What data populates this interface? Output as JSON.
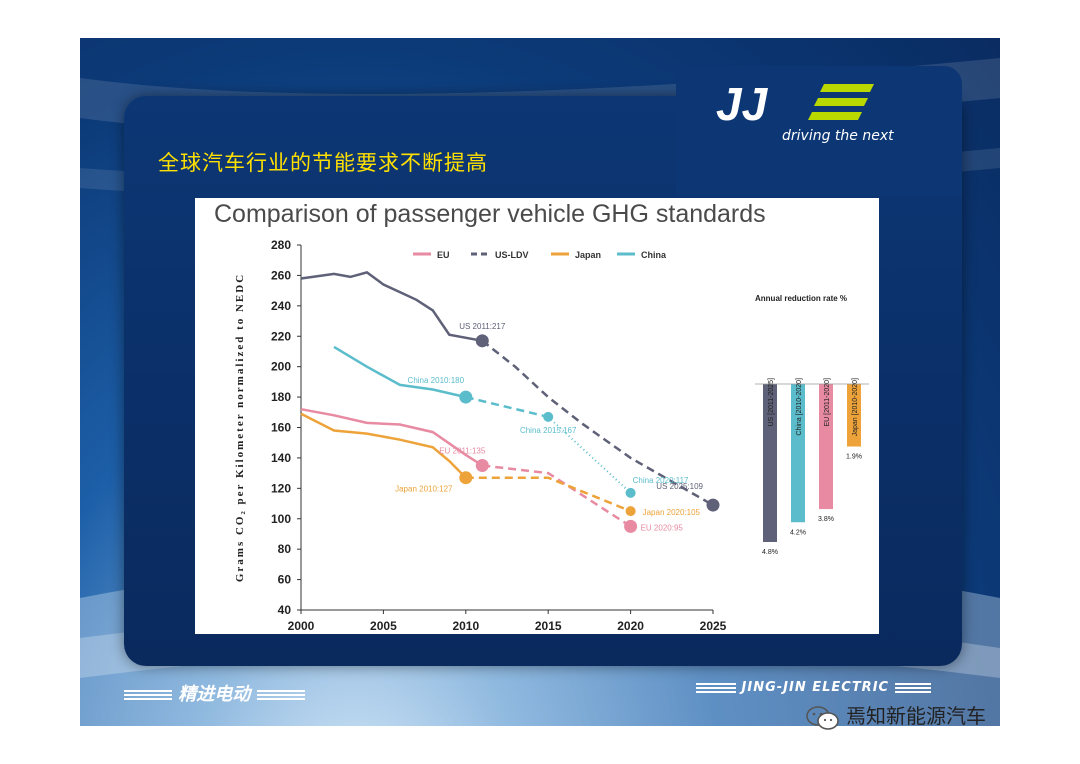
{
  "slide": {
    "title_cn": "全球汽车行业的节能要求不断提高",
    "logo_text": "JJ",
    "tagline": "driving the next",
    "footer_left": "精进电动",
    "footer_right": "JING-JIN ELECTRIC",
    "watermark": "焉知新能源汽车",
    "colors": {
      "panel": "#0b3270",
      "title": "#ffe000",
      "logo_accent": "#b9d800"
    }
  },
  "chart_data": [
    {
      "type": "line",
      "title": "Comparison of passenger vehicle GHG standards",
      "ylabel": "Grams CO₂ per Kilometer normalized to NEDC",
      "xlabel": "",
      "xlim": [
        2000,
        2025
      ],
      "ylim": [
        40,
        280
      ],
      "xticks": [
        2000,
        2005,
        2010,
        2015,
        2020,
        2025
      ],
      "yticks": [
        40,
        60,
        80,
        100,
        120,
        140,
        160,
        180,
        200,
        220,
        240,
        260,
        280
      ],
      "legend": "top",
      "series": [
        {
          "name": "EU",
          "color": "#e78aa2",
          "historical": [
            [
              2000,
              172
            ],
            [
              2002,
              168
            ],
            [
              2004,
              163
            ],
            [
              2006,
              162
            ],
            [
              2008,
              157
            ],
            [
              2010,
              142
            ],
            [
              2011,
              135
            ]
          ],
          "target": [
            [
              2011,
              135
            ],
            [
              2015,
              130
            ],
            [
              2020,
              95
            ]
          ]
        },
        {
          "name": "US-LDV",
          "color": "#5e6177",
          "historical": [
            [
              2000,
              258
            ],
            [
              2002,
              261
            ],
            [
              2003,
              259
            ],
            [
              2004,
              262
            ],
            [
              2005,
              254
            ],
            [
              2006,
              249
            ],
            [
              2007,
              244
            ],
            [
              2008,
              237
            ],
            [
              2009,
              221
            ],
            [
              2011,
              217
            ]
          ],
          "target": [
            [
              2011,
              217
            ],
            [
              2013,
              200
            ],
            [
              2015,
              180
            ],
            [
              2017,
              163
            ],
            [
              2020,
              140
            ],
            [
              2025,
              109
            ]
          ]
        },
        {
          "name": "Japan",
          "color": "#eda33a",
          "historical": [
            [
              2000,
              169
            ],
            [
              2002,
              158
            ],
            [
              2004,
              156
            ],
            [
              2006,
              152
            ],
            [
              2008,
              147
            ],
            [
              2009,
              138
            ],
            [
              2010,
              127
            ]
          ],
          "target": [
            [
              2010,
              127
            ],
            [
              2015,
              127
            ],
            [
              2020,
              105
            ]
          ]
        },
        {
          "name": "China",
          "color": "#5bbdcc",
          "historical": [
            [
              2002,
              213
            ],
            [
              2004,
              200
            ],
            [
              2006,
              188
            ],
            [
              2008,
              185
            ],
            [
              2010,
              180
            ]
          ],
          "target": [
            [
              2010,
              180
            ],
            [
              2015,
              167
            ]
          ],
          "projection": [
            [
              2015,
              167
            ],
            [
              2020,
              117
            ]
          ]
        }
      ],
      "markers": [
        {
          "series": "US-LDV",
          "x": 2011,
          "y": 217,
          "label": "US 2011:217"
        },
        {
          "series": "US-LDV",
          "x": 2025,
          "y": 109,
          "label": "US 2025:109"
        },
        {
          "series": "China",
          "x": 2010,
          "y": 180,
          "label": "China 2010:180"
        },
        {
          "series": "China",
          "x": 2015,
          "y": 167,
          "label": "China 2015:167"
        },
        {
          "series": "China",
          "x": 2020,
          "y": 117,
          "label": "China 2020:117"
        },
        {
          "series": "EU",
          "x": 2011,
          "y": 135,
          "label": "EU 2011:135"
        },
        {
          "series": "EU",
          "x": 2020,
          "y": 95,
          "label": "EU 2020:95"
        },
        {
          "series": "Japan",
          "x": 2010,
          "y": 127,
          "label": "Japan 2010:127"
        },
        {
          "series": "Japan",
          "x": 2020,
          "y": 105,
          "label": "Japan 2020:105"
        }
      ]
    },
    {
      "type": "bar",
      "title": "Annual reduction rate %",
      "categories": [
        "US [2011-2025]",
        "China [2010-2020]",
        "EU [2011-2020]",
        "Japan [2010-2020]"
      ],
      "values": [
        4.8,
        4.2,
        3.8,
        1.9
      ],
      "value_labels": [
        "4.8%",
        "4.2%",
        "3.8%",
        "1.9%"
      ],
      "colors": [
        "#5e6177",
        "#5bbdcc",
        "#e78aa2",
        "#eda33a"
      ],
      "orientation": "vertical-down",
      "ylim": [
        0,
        4.8
      ]
    }
  ]
}
